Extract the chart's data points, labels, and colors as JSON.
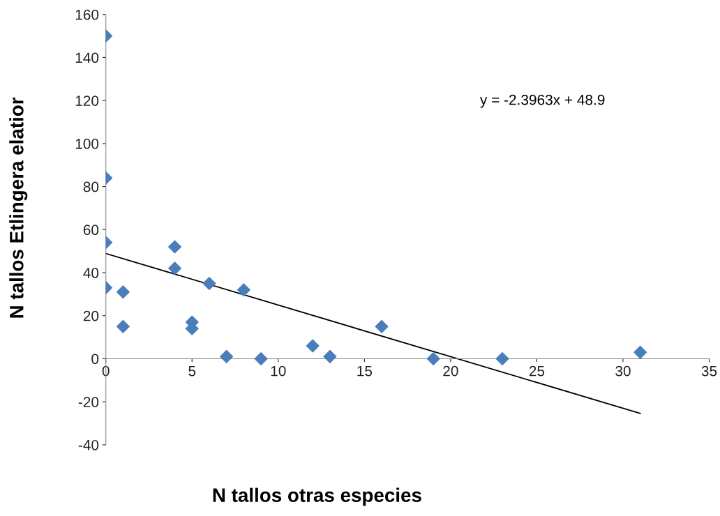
{
  "chart_data": {
    "type": "scatter",
    "xlabel": "N tallos otras especies",
    "ylabel": "N tallos Etlingera elatior",
    "annotations": [
      "y = -2.3963x + 48.9"
    ],
    "xlim": [
      0,
      35
    ],
    "xticks": [
      0,
      5,
      10,
      15,
      20,
      25,
      30,
      35
    ],
    "ylim": [
      -40,
      160
    ],
    "yticks": [
      -40,
      -20,
      0,
      20,
      40,
      60,
      80,
      100,
      120,
      140,
      160
    ],
    "grid": false,
    "legend": false,
    "series": [
      {
        "marker": "diamond",
        "color": "#4a7ebb",
        "x": [
          0,
          0,
          0,
          0,
          1,
          1,
          4,
          4,
          5,
          5,
          6,
          7,
          8,
          9,
          12,
          13,
          16,
          19,
          23,
          31
        ],
        "values": [
          150,
          84,
          54,
          33,
          31,
          15,
          52,
          42,
          17,
          14,
          35,
          1,
          32,
          0,
          6,
          1,
          15,
          0,
          0,
          3
        ]
      },
      {
        "type": "line",
        "marker": "none",
        "color": "#000000",
        "line_style": "solid",
        "x": [
          0,
          31
        ],
        "values": [
          48.9,
          -25.4
        ]
      }
    ]
  }
}
